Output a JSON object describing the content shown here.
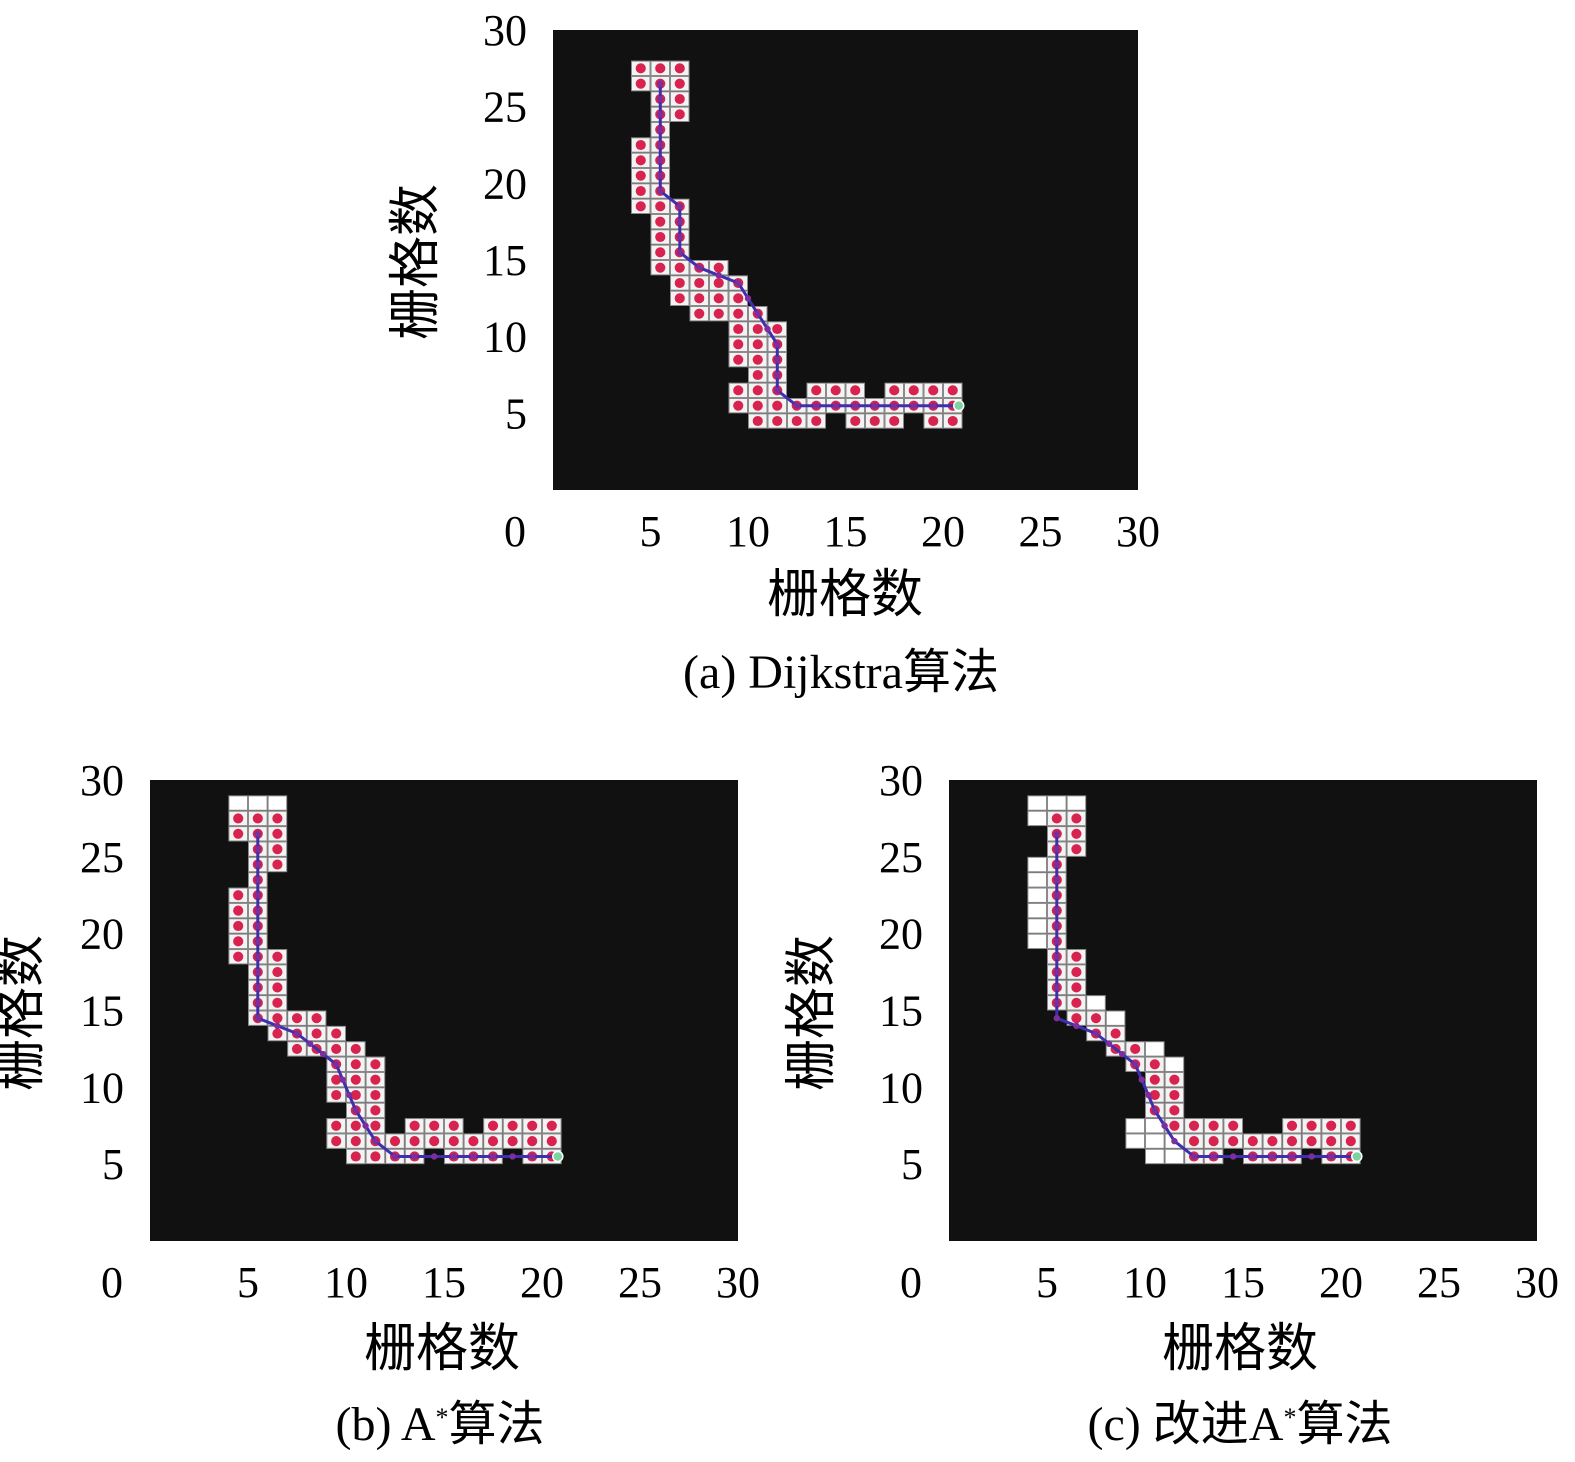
{
  "chart_data": [
    {
      "type": "heatmap",
      "id": "a",
      "caption": "(a) Dijkstra算法",
      "xlabel": "栅格数",
      "ylabel": "栅格数",
      "xlim": [
        0,
        30
      ],
      "ylim": [
        0,
        30
      ],
      "xticks": [
        "0",
        "5",
        "10",
        "15",
        "20",
        "25",
        "30"
      ],
      "yticks": [
        "5",
        "10",
        "15",
        "20",
        "25",
        "30"
      ],
      "background_color": "#111111",
      "path": [
        [
          5.5,
          26.5
        ],
        [
          5.5,
          19.5
        ],
        [
          6.5,
          18.5
        ],
        [
          6.5,
          15.5
        ],
        [
          7.5,
          14.5
        ],
        [
          9.5,
          13.5
        ],
        [
          10.5,
          11.5
        ],
        [
          11.5,
          9.5
        ],
        [
          11.5,
          6.5
        ],
        [
          12.5,
          5.5
        ],
        [
          20.5,
          5.5
        ]
      ],
      "explored_cells": [
        [
          4,
          27
        ],
        [
          5,
          27
        ],
        [
          6,
          27
        ],
        [
          4,
          26
        ],
        [
          5,
          26
        ],
        [
          6,
          26
        ],
        [
          5,
          25
        ],
        [
          6,
          25
        ],
        [
          5,
          24
        ],
        [
          6,
          24
        ],
        [
          5,
          23
        ],
        [
          4,
          22
        ],
        [
          5,
          22
        ],
        [
          4,
          21
        ],
        [
          5,
          21
        ],
        [
          4,
          20
        ],
        [
          5,
          20
        ],
        [
          4,
          19
        ],
        [
          5,
          19
        ],
        [
          4,
          18
        ],
        [
          5,
          18
        ],
        [
          6,
          18
        ],
        [
          5,
          17
        ],
        [
          6,
          17
        ],
        [
          5,
          16
        ],
        [
          6,
          16
        ],
        [
          5,
          15
        ],
        [
          6,
          15
        ],
        [
          5,
          14
        ],
        [
          6,
          14
        ],
        [
          7,
          14
        ],
        [
          8,
          14
        ],
        [
          6,
          13
        ],
        [
          7,
          13
        ],
        [
          8,
          13
        ],
        [
          9,
          13
        ],
        [
          6,
          12
        ],
        [
          7,
          12
        ],
        [
          8,
          12
        ],
        [
          9,
          12
        ],
        [
          7,
          11
        ],
        [
          8,
          11
        ],
        [
          9,
          11
        ],
        [
          10,
          11
        ],
        [
          9,
          10
        ],
        [
          10,
          10
        ],
        [
          11,
          10
        ],
        [
          9,
          9
        ],
        [
          10,
          9
        ],
        [
          11,
          9
        ],
        [
          9,
          8
        ],
        [
          10,
          8
        ],
        [
          11,
          8
        ],
        [
          10,
          7
        ],
        [
          11,
          7
        ],
        [
          9,
          6
        ],
        [
          10,
          6
        ],
        [
          11,
          6
        ],
        [
          13,
          6
        ],
        [
          14,
          6
        ],
        [
          15,
          6
        ],
        [
          17,
          6
        ],
        [
          18,
          6
        ],
        [
          19,
          6
        ],
        [
          20,
          6
        ],
        [
          9,
          5
        ],
        [
          10,
          5
        ],
        [
          11,
          5
        ],
        [
          12,
          5
        ],
        [
          13,
          5
        ],
        [
          14,
          5
        ],
        [
          15,
          5
        ],
        [
          16,
          5
        ],
        [
          17,
          5
        ],
        [
          18,
          5
        ],
        [
          19,
          5
        ],
        [
          20,
          5
        ],
        [
          10,
          4
        ],
        [
          11,
          4
        ],
        [
          12,
          4
        ],
        [
          13,
          4
        ],
        [
          15,
          4
        ],
        [
          16,
          4
        ],
        [
          17,
          4
        ],
        [
          19,
          4
        ],
        [
          20,
          4
        ]
      ],
      "open_cells": [
        [
          4,
          27
        ],
        [
          5,
          27
        ],
        [
          6,
          27
        ]
      ],
      "goal": [
        20.5,
        5.5
      ]
    },
    {
      "type": "heatmap",
      "id": "b",
      "caption_main": "(b) A",
      "caption_sup": "*",
      "caption_tail": "算法",
      "xlabel": "栅格数",
      "ylabel": "栅格数",
      "xlim": [
        0,
        30
      ],
      "ylim": [
        0,
        30
      ],
      "xticks": [
        "0",
        "5",
        "10",
        "15",
        "20",
        "25",
        "30"
      ],
      "yticks": [
        "5",
        "10",
        "15",
        "20",
        "25",
        "30"
      ],
      "background_color": "#111111",
      "path": [
        [
          5.5,
          26.5
        ],
        [
          5.5,
          14.5
        ],
        [
          7.5,
          13.5
        ],
        [
          9.5,
          11.5
        ],
        [
          10.5,
          8.5
        ],
        [
          11.5,
          6.5
        ],
        [
          12.5,
          5.5
        ],
        [
          20.5,
          5.5
        ]
      ],
      "explored_cells": [
        [
          4,
          27
        ],
        [
          5,
          27
        ],
        [
          6,
          27
        ],
        [
          4,
          26
        ],
        [
          5,
          26
        ],
        [
          6,
          26
        ],
        [
          5,
          25
        ],
        [
          6,
          25
        ],
        [
          5,
          24
        ],
        [
          6,
          24
        ],
        [
          5,
          23
        ],
        [
          4,
          22
        ],
        [
          5,
          22
        ],
        [
          4,
          21
        ],
        [
          5,
          21
        ],
        [
          4,
          20
        ],
        [
          5,
          20
        ],
        [
          4,
          19
        ],
        [
          5,
          19
        ],
        [
          4,
          18
        ],
        [
          5,
          18
        ],
        [
          6,
          18
        ],
        [
          5,
          17
        ],
        [
          6,
          17
        ],
        [
          5,
          16
        ],
        [
          6,
          16
        ],
        [
          5,
          15
        ],
        [
          6,
          15
        ],
        [
          5,
          14
        ],
        [
          6,
          14
        ],
        [
          7,
          14
        ],
        [
          8,
          14
        ],
        [
          6,
          13
        ],
        [
          7,
          13
        ],
        [
          8,
          13
        ],
        [
          9,
          13
        ],
        [
          7,
          12
        ],
        [
          8,
          12
        ],
        [
          9,
          12
        ],
        [
          10,
          12
        ],
        [
          9,
          11
        ],
        [
          10,
          11
        ],
        [
          11,
          11
        ],
        [
          9,
          10
        ],
        [
          10,
          10
        ],
        [
          11,
          10
        ],
        [
          9,
          9
        ],
        [
          10,
          9
        ],
        [
          11,
          9
        ],
        [
          10,
          8
        ],
        [
          11,
          8
        ],
        [
          9,
          7
        ],
        [
          10,
          7
        ],
        [
          11,
          7
        ],
        [
          13,
          7
        ],
        [
          14,
          7
        ],
        [
          15,
          7
        ],
        [
          17,
          7
        ],
        [
          18,
          7
        ],
        [
          19,
          7
        ],
        [
          20,
          7
        ],
        [
          9,
          6
        ],
        [
          10,
          6
        ],
        [
          11,
          6
        ],
        [
          12,
          6
        ],
        [
          13,
          6
        ],
        [
          14,
          6
        ],
        [
          15,
          6
        ],
        [
          16,
          6
        ],
        [
          17,
          6
        ],
        [
          18,
          6
        ],
        [
          19,
          6
        ],
        [
          20,
          6
        ],
        [
          10,
          5
        ],
        [
          11,
          5
        ],
        [
          12,
          5
        ],
        [
          13,
          5
        ],
        [
          15,
          5
        ],
        [
          16,
          5
        ],
        [
          17,
          5
        ],
        [
          19,
          5
        ],
        [
          20,
          5
        ]
      ],
      "open_cells": [
        [
          4,
          28
        ],
        [
          5,
          28
        ],
        [
          6,
          28
        ],
        [
          11,
          11
        ],
        [
          9,
          6
        ],
        [
          10,
          5
        ]
      ],
      "goal": [
        20.5,
        5.5
      ]
    },
    {
      "type": "heatmap",
      "id": "c",
      "caption_main": "(c) 改进A",
      "caption_sup": "*",
      "caption_tail": "算法",
      "xlabel": "栅格数",
      "ylabel": "栅格数",
      "xlim": [
        0,
        30
      ],
      "ylim": [
        0,
        30
      ],
      "xticks": [
        "0",
        "5",
        "10",
        "15",
        "20",
        "25",
        "30"
      ],
      "yticks": [
        "5",
        "10",
        "15",
        "20",
        "25",
        "30"
      ],
      "background_color": "#111111",
      "path": [
        [
          5.5,
          26.5
        ],
        [
          5.5,
          14.5
        ],
        [
          7.5,
          13.5
        ],
        [
          9.5,
          11.5
        ],
        [
          10.5,
          8.5
        ],
        [
          11.5,
          6.5
        ],
        [
          12.5,
          5.5
        ],
        [
          20.5,
          5.5
        ]
      ],
      "explored_cells": [
        [
          5,
          27
        ],
        [
          6,
          27
        ],
        [
          5,
          26
        ],
        [
          6,
          26
        ],
        [
          5,
          25
        ],
        [
          6,
          25
        ],
        [
          5,
          24
        ],
        [
          5,
          23
        ],
        [
          5,
          22
        ],
        [
          5,
          21
        ],
        [
          5,
          20
        ],
        [
          5,
          19
        ],
        [
          5,
          18
        ],
        [
          6,
          18
        ],
        [
          5,
          17
        ],
        [
          6,
          17
        ],
        [
          5,
          16
        ],
        [
          6,
          16
        ],
        [
          5,
          15
        ],
        [
          6,
          15
        ],
        [
          6,
          14
        ],
        [
          7,
          14
        ],
        [
          7,
          13
        ],
        [
          8,
          13
        ],
        [
          8,
          12
        ],
        [
          9,
          12
        ],
        [
          9,
          11
        ],
        [
          10,
          11
        ],
        [
          10,
          10
        ],
        [
          11,
          10
        ],
        [
          10,
          9
        ],
        [
          11,
          9
        ],
        [
          10,
          8
        ],
        [
          11,
          8
        ],
        [
          11,
          7
        ],
        [
          12,
          7
        ],
        [
          13,
          7
        ],
        [
          14,
          7
        ],
        [
          17,
          7
        ],
        [
          18,
          7
        ],
        [
          19,
          7
        ],
        [
          20,
          7
        ],
        [
          12,
          6
        ],
        [
          13,
          6
        ],
        [
          14,
          6
        ],
        [
          15,
          6
        ],
        [
          16,
          6
        ],
        [
          17,
          6
        ],
        [
          18,
          6
        ],
        [
          19,
          6
        ],
        [
          20,
          6
        ],
        [
          12,
          5
        ],
        [
          13,
          5
        ],
        [
          15,
          5
        ],
        [
          16,
          5
        ],
        [
          17,
          5
        ],
        [
          19,
          5
        ],
        [
          20,
          5
        ]
      ],
      "open_cells": [
        [
          4,
          28
        ],
        [
          5,
          28
        ],
        [
          6,
          28
        ],
        [
          4,
          27
        ],
        [
          4,
          24
        ],
        [
          4,
          23
        ],
        [
          4,
          22
        ],
        [
          4,
          21
        ],
        [
          4,
          20
        ],
        [
          4,
          19
        ],
        [
          7,
          15
        ],
        [
          8,
          14
        ],
        [
          10,
          12
        ],
        [
          11,
          11
        ],
        [
          9,
          7
        ],
        [
          10,
          7
        ],
        [
          9,
          6
        ],
        [
          10,
          6
        ],
        [
          11,
          6
        ],
        [
          10,
          5
        ],
        [
          11,
          5
        ]
      ],
      "goal": [
        20.5,
        5.5
      ]
    }
  ]
}
